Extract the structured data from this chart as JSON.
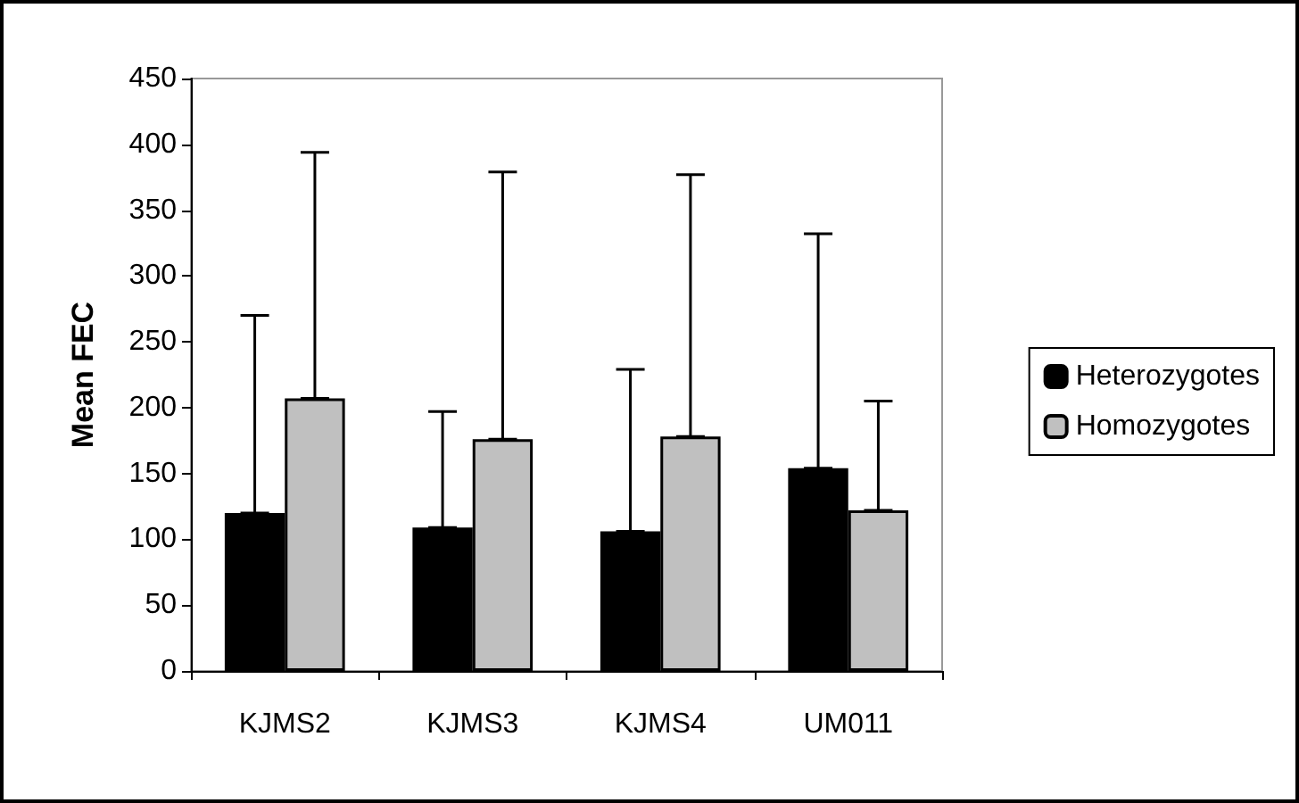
{
  "chart_data": {
    "type": "bar",
    "ylabel": "Mean FEC",
    "categories": [
      "KJMS2",
      "KJMS3",
      "KJMS4",
      "UM011"
    ],
    "series": [
      {
        "name": "Heterozygotes",
        "color": "#000000",
        "values": [
          120,
          109,
          106,
          154
        ],
        "errors": [
          [
            120,
            270
          ],
          [
            109,
            197
          ],
          [
            106,
            229
          ],
          [
            154,
            332
          ]
        ]
      },
      {
        "name": "Homozygotes",
        "color": "#c0c0c0",
        "values": [
          207,
          176,
          178,
          122
        ],
        "errors": [
          [
            207,
            394
          ],
          [
            176,
            379
          ],
          [
            178,
            377
          ],
          [
            122,
            205
          ]
        ]
      }
    ],
    "ylim": [
      0,
      450
    ],
    "yticks": [
      0,
      50,
      100,
      150,
      200,
      250,
      300,
      350,
      400,
      450
    ],
    "grid": false,
    "legend": "right"
  }
}
